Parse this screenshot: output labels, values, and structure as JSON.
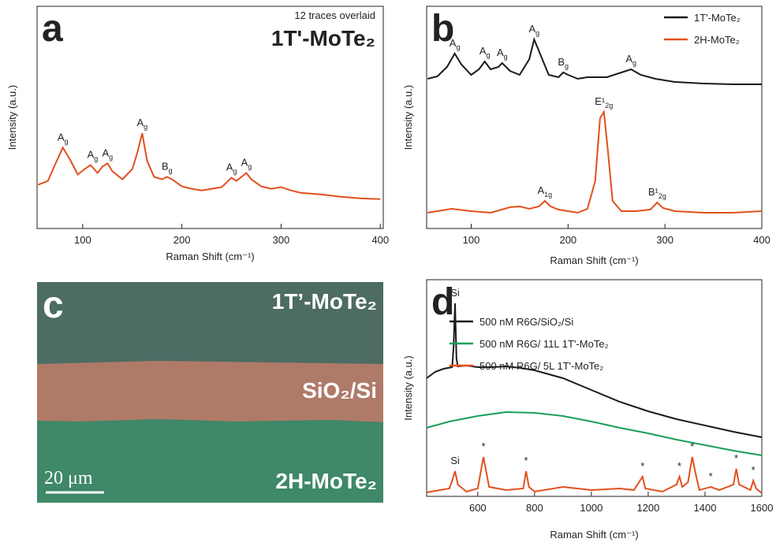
{
  "chart_data": [
    {
      "type": "line",
      "panel_label": "a",
      "subtitle": "12 traces overlaid",
      "title": "1T'-MoTe₂",
      "x_label": "Raman Shift (cm⁻¹)",
      "y_label": "Intensity (a.u.)",
      "xlim": [
        54,
        403
      ],
      "xticks": [
        100,
        200,
        300,
        400
      ],
      "ylim": [
        -10,
        270
      ],
      "series": [
        {
          "color": "#e2501e",
          "x": [
            55,
            65,
            72,
            80,
            88,
            95,
            102,
            108,
            115,
            120,
            125,
            130,
            140,
            150,
            155,
            160,
            165,
            172,
            180,
            185,
            190,
            200,
            210,
            220,
            230,
            240,
            245,
            250,
            255,
            260,
            265,
            270,
            280,
            290,
            300,
            310,
            320,
            340,
            360,
            380,
            400
          ],
          "values": [
            45,
            50,
            70,
            92,
            75,
            58,
            65,
            70,
            60,
            68,
            72,
            62,
            52,
            65,
            85,
            110,
            75,
            55,
            52,
            55,
            52,
            43,
            40,
            38,
            40,
            42,
            48,
            54,
            50,
            55,
            60,
            52,
            43,
            40,
            42,
            38,
            35,
            33,
            30,
            28,
            27
          ],
          "annotations": [
            {
              "x": 80,
              "label": "A",
              "sub": "g"
            },
            {
              "x": 110,
              "label": "A",
              "sub": "g"
            },
            {
              "x": 125,
              "label": "A",
              "sub": "g"
            },
            {
              "x": 160,
              "label": "A",
              "sub": "g"
            },
            {
              "x": 185,
              "label": "B",
              "sub": "g"
            },
            {
              "x": 250,
              "label": "A",
              "sub": "g"
            },
            {
              "x": 265,
              "label": "A",
              "sub": "g"
            }
          ]
        }
      ]
    },
    {
      "type": "line",
      "panel_label": "b",
      "x_label": "Raman Shift (cm⁻¹)",
      "y_label": "Intensity (a.u.)",
      "xlim": [
        54,
        400
      ],
      "xticks": [
        100,
        200,
        300,
        400
      ],
      "ylim": [
        0,
        282
      ],
      "series": [
        {
          "name": "1T'-MoTe₂",
          "color": "#1a1a1a",
          "x": [
            55,
            65,
            75,
            83,
            90,
            100,
            108,
            114,
            120,
            128,
            132,
            140,
            150,
            160,
            165,
            170,
            180,
            190,
            195,
            200,
            210,
            220,
            240,
            255,
            265,
            275,
            290,
            310,
            340,
            370,
            400
          ],
          "values": [
            190,
            193,
            205,
            222,
            208,
            195,
            202,
            212,
            202,
            205,
            210,
            200,
            195,
            215,
            240,
            225,
            195,
            192,
            198,
            195,
            190,
            192,
            192,
            198,
            202,
            195,
            190,
            186,
            184,
            183,
            183
          ],
          "annotations": [
            {
              "x": 83,
              "label": "A",
              "sub": "g"
            },
            {
              "x": 114,
              "label": "A",
              "sub": "g"
            },
            {
              "x": 132,
              "label": "A",
              "sub": "g"
            },
            {
              "x": 165,
              "label": "A",
              "sub": "g"
            },
            {
              "x": 195,
              "label": "B",
              "sub": "g"
            },
            {
              "x": 265,
              "label": "A",
              "sub": "g"
            }
          ]
        },
        {
          "name": "2H-MoTe₂",
          "color": "#e2501e",
          "x": [
            55,
            80,
            100,
            120,
            140,
            150,
            160,
            170,
            176,
            182,
            190,
            200,
            210,
            220,
            228,
            233,
            237,
            241,
            246,
            255,
            270,
            285,
            292,
            298,
            310,
            340,
            370,
            400
          ],
          "values": [
            20,
            25,
            22,
            20,
            27,
            28,
            25,
            28,
            35,
            28,
            24,
            22,
            20,
            25,
            60,
            140,
            148,
            100,
            35,
            22,
            22,
            24,
            33,
            26,
            22,
            20,
            20,
            22
          ],
          "annotations": [
            {
              "x": 176,
              "label": "A",
              "sub": "1g"
            },
            {
              "x": 237,
              "label": "E¹",
              "sub": "2g"
            },
            {
              "x": 292,
              "label": "B¹",
              "sub": "2g"
            }
          ]
        }
      ]
    },
    {
      "type": "line",
      "panel_label": "d",
      "x_label": "Raman Shift (cm⁻¹)",
      "y_label": "Intensity (a.u.)",
      "xlim": [
        420,
        1600
      ],
      "xticks": [
        600,
        800,
        1000,
        1200,
        1400,
        1600
      ],
      "ylim": [
        0,
        275
      ],
      "series": [
        {
          "name": "500 nM R6G/SiO₂/Si",
          "color": "#1a1a1a",
          "x": [
            420,
            450,
            480,
            510,
            515,
            520,
            525,
            530,
            560,
            600,
            650,
            700,
            750,
            800,
            900,
            1000,
            1100,
            1200,
            1300,
            1400,
            1500,
            1600
          ],
          "values": [
            150,
            158,
            162,
            164,
            190,
            245,
            175,
            165,
            166,
            164,
            164,
            165,
            163,
            160,
            150,
            135,
            120,
            108,
            98,
            90,
            82,
            75
          ],
          "annotations": [
            {
              "x": 520,
              "label": "Si"
            }
          ]
        },
        {
          "name": "500 nM R6G/ 11L 1T'-MoTe₂",
          "color": "#18a058",
          "x": [
            420,
            500,
            600,
            700,
            800,
            900,
            1000,
            1100,
            1200,
            1300,
            1400,
            1500,
            1600
          ],
          "values": [
            87,
            95,
            102,
            107,
            106,
            102,
            95,
            87,
            80,
            72,
            65,
            58,
            52
          ]
        },
        {
          "name": "500 nM R6G/ 5L 1T'-MoTe₂",
          "color": "#e2501e",
          "x": [
            420,
            500,
            510,
            520,
            530,
            560,
            600,
            610,
            620,
            640,
            700,
            760,
            770,
            780,
            800,
            900,
            1000,
            1100,
            1150,
            1180,
            1190,
            1250,
            1300,
            1310,
            1320,
            1340,
            1355,
            1365,
            1380,
            1420,
            1450,
            1500,
            1510,
            1520,
            1560,
            1570,
            1580,
            1600
          ],
          "values": [
            5,
            10,
            20,
            32,
            15,
            6,
            10,
            30,
            50,
            12,
            8,
            10,
            32,
            12,
            6,
            12,
            8,
            10,
            8,
            25,
            10,
            6,
            15,
            25,
            12,
            18,
            50,
            32,
            8,
            12,
            8,
            15,
            35,
            15,
            8,
            20,
            10,
            4
          ],
          "annotations": [
            {
              "x": 520,
              "label": "Si"
            },
            {
              "x": 620,
              "label": "*"
            },
            {
              "x": 770,
              "label": "*"
            },
            {
              "x": 1180,
              "label": "*"
            },
            {
              "x": 1310,
              "label": "*"
            },
            {
              "x": 1355,
              "label": "*"
            },
            {
              "x": 1420,
              "label": "*"
            },
            {
              "x": 1510,
              "label": "*"
            },
            {
              "x": 1570,
              "label": "*"
            }
          ]
        }
      ]
    }
  ],
  "micrograph": {
    "panel_label": "c",
    "regions": [
      "1T’-MoTe₂",
      "SiO₂/Si",
      "2H-MoTe₂"
    ],
    "scale_bar": "20 μm"
  }
}
